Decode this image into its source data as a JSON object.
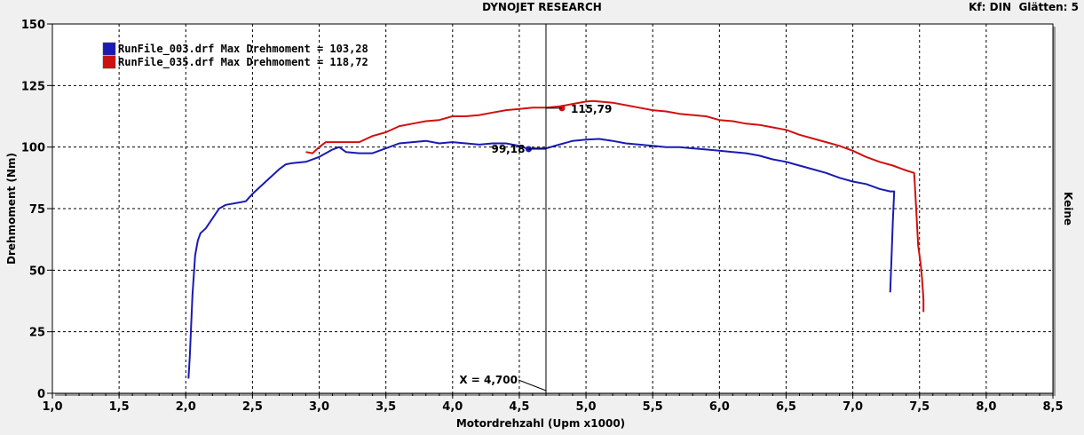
{
  "header": {
    "title": "DYNOJET RESEARCH",
    "kf_label": "Kf: DIN",
    "smooth_label": "Glätten: 5"
  },
  "right_label": "Keine",
  "colors": {
    "series1": "#1a1ab4",
    "series2": "#d01010",
    "grid": "#000000",
    "plot_bg": "#ffffff"
  },
  "chart_data": {
    "type": "line",
    "xlabel": "Motordrehzahl (Upm x1000)",
    "ylabel": "Drehmoment (Nm)",
    "xlim": [
      1.0,
      8.5
    ],
    "ylim": [
      0,
      150
    ],
    "xticks": [
      "1,0",
      "1,5",
      "2,0",
      "2,5",
      "3,0",
      "3,5",
      "4,0",
      "4,5",
      "5,0",
      "5,5",
      "6,0",
      "6,5",
      "7,0",
      "7,5",
      "8,0",
      "8,5"
    ],
    "yticks": [
      "0",
      "25",
      "50",
      "75",
      "100",
      "125",
      "150"
    ],
    "grid": true,
    "legend_position": "top-left",
    "cursor": {
      "x": 4.7,
      "label": "X = 4,700"
    },
    "series": [
      {
        "name": "RunFile_003.drf Max Drehmoment = 103,28",
        "color": "#1a1ab4",
        "marker": {
          "x": 4.57,
          "y": 99.18,
          "label": "99,18"
        },
        "points": [
          [
            2.02,
            6
          ],
          [
            2.03,
            15
          ],
          [
            2.05,
            40
          ],
          [
            2.07,
            56
          ],
          [
            2.09,
            62
          ],
          [
            2.11,
            65
          ],
          [
            2.15,
            67
          ],
          [
            2.2,
            71
          ],
          [
            2.25,
            75
          ],
          [
            2.3,
            76.5
          ],
          [
            2.4,
            77.5
          ],
          [
            2.45,
            78
          ],
          [
            2.5,
            81
          ],
          [
            2.6,
            86
          ],
          [
            2.7,
            91
          ],
          [
            2.75,
            93
          ],
          [
            2.8,
            93.5
          ],
          [
            2.9,
            94
          ],
          [
            3.0,
            96
          ],
          [
            3.1,
            99
          ],
          [
            3.15,
            100
          ],
          [
            3.2,
            98
          ],
          [
            3.3,
            97.5
          ],
          [
            3.4,
            97.5
          ],
          [
            3.5,
            99.5
          ],
          [
            3.6,
            101.5
          ],
          [
            3.7,
            102
          ],
          [
            3.8,
            102.5
          ],
          [
            3.9,
            101.5
          ],
          [
            4.0,
            102
          ],
          [
            4.1,
            101.5
          ],
          [
            4.2,
            101
          ],
          [
            4.3,
            101.5
          ],
          [
            4.4,
            101.5
          ],
          [
            4.5,
            100.5
          ],
          [
            4.57,
            99.2
          ],
          [
            4.6,
            99.5
          ],
          [
            4.7,
            99.5
          ],
          [
            4.8,
            101
          ],
          [
            4.9,
            102.5
          ],
          [
            5.0,
            103
          ],
          [
            5.1,
            103.3
          ],
          [
            5.2,
            102.5
          ],
          [
            5.3,
            101.5
          ],
          [
            5.4,
            101
          ],
          [
            5.5,
            100.5
          ],
          [
            5.6,
            100
          ],
          [
            5.7,
            100
          ],
          [
            5.8,
            99.5
          ],
          [
            5.9,
            99
          ],
          [
            6.0,
            98.5
          ],
          [
            6.1,
            98
          ],
          [
            6.2,
            97.5
          ],
          [
            6.3,
            96.5
          ],
          [
            6.4,
            95
          ],
          [
            6.5,
            94
          ],
          [
            6.6,
            92.5
          ],
          [
            6.7,
            91
          ],
          [
            6.8,
            89.5
          ],
          [
            6.9,
            87.5
          ],
          [
            7.0,
            86
          ],
          [
            7.1,
            85
          ],
          [
            7.2,
            83
          ],
          [
            7.28,
            82
          ],
          [
            7.31,
            82
          ],
          [
            7.3,
            70
          ],
          [
            7.29,
            55
          ],
          [
            7.28,
            41
          ]
        ]
      },
      {
        "name": "RunFile_035.drf Max Drehmoment = 118,72",
        "color": "#d01010",
        "marker": {
          "x": 4.82,
          "y": 115.79,
          "label": "115,79"
        },
        "points": [
          [
            2.9,
            98
          ],
          [
            2.95,
            97.5
          ],
          [
            3.0,
            100
          ],
          [
            3.05,
            102
          ],
          [
            3.1,
            102
          ],
          [
            3.2,
            102
          ],
          [
            3.3,
            102
          ],
          [
            3.4,
            104.5
          ],
          [
            3.5,
            106
          ],
          [
            3.6,
            108.5
          ],
          [
            3.7,
            109.5
          ],
          [
            3.8,
            110.5
          ],
          [
            3.9,
            111
          ],
          [
            4.0,
            112.5
          ],
          [
            4.1,
            112.5
          ],
          [
            4.2,
            113
          ],
          [
            4.3,
            114
          ],
          [
            4.4,
            115
          ],
          [
            4.5,
            115.5
          ],
          [
            4.6,
            116
          ],
          [
            4.7,
            116
          ],
          [
            4.8,
            116.5
          ],
          [
            4.9,
            117.5
          ],
          [
            5.0,
            118.5
          ],
          [
            5.05,
            118.7
          ],
          [
            5.1,
            118.5
          ],
          [
            5.2,
            118
          ],
          [
            5.3,
            117
          ],
          [
            5.4,
            116
          ],
          [
            5.5,
            115
          ],
          [
            5.6,
            114.5
          ],
          [
            5.7,
            113.5
          ],
          [
            5.8,
            113
          ],
          [
            5.9,
            112.5
          ],
          [
            6.0,
            111
          ],
          [
            6.1,
            110.5
          ],
          [
            6.2,
            109.5
          ],
          [
            6.3,
            109
          ],
          [
            6.4,
            108
          ],
          [
            6.5,
            107
          ],
          [
            6.6,
            105
          ],
          [
            6.7,
            103.5
          ],
          [
            6.8,
            102
          ],
          [
            6.9,
            100.5
          ],
          [
            7.0,
            98.5
          ],
          [
            7.1,
            96
          ],
          [
            7.2,
            94
          ],
          [
            7.3,
            92.5
          ],
          [
            7.4,
            90.5
          ],
          [
            7.46,
            89.5
          ],
          [
            7.47,
            80
          ],
          [
            7.49,
            60
          ],
          [
            7.51,
            52
          ],
          [
            7.52,
            46
          ],
          [
            7.53,
            38
          ],
          [
            7.53,
            33
          ]
        ]
      }
    ]
  }
}
